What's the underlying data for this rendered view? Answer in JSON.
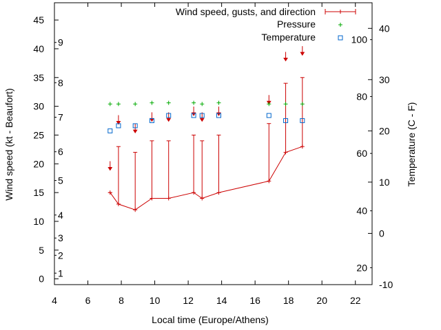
{
  "chart_data": {
    "type": "line",
    "xlabel": "Local time (Europe/Athens)",
    "ylabel": "Wind speed (kt - Beaufort)",
    "y2label": "Temperature (C - F)",
    "xlim": [
      4,
      23
    ],
    "ylim": [
      -1,
      48
    ],
    "y2lim": [
      -10,
      45
    ],
    "x_ticks": [
      4,
      6,
      8,
      10,
      12,
      14,
      16,
      18,
      20,
      22
    ],
    "y_ticks": [
      0,
      5,
      10,
      15,
      20,
      25,
      30,
      35,
      40,
      45
    ],
    "beaufort_ticks": [
      {
        "label": "1",
        "y": 1
      },
      {
        "label": "2",
        "y": 4.1
      },
      {
        "label": "3",
        "y": 7.1
      },
      {
        "label": "4",
        "y": 11.1
      },
      {
        "label": "5",
        "y": 17.1
      },
      {
        "label": "6",
        "y": 22.1
      },
      {
        "label": "7",
        "y": 28.1
      },
      {
        "label": "8",
        "y": 34.1
      },
      {
        "label": "9",
        "y": 41.1
      }
    ],
    "y2_ticks": [
      -10,
      0,
      10,
      20,
      30,
      40
    ],
    "fahrenheit_ticks": [
      {
        "label": "20",
        "y": -6.7
      },
      {
        "label": "40",
        "y": 4.4
      },
      {
        "label": "60",
        "y": 15.6
      },
      {
        "label": "80",
        "y": 26.7
      },
      {
        "label": "100",
        "y": 37.8
      }
    ],
    "legend": [
      {
        "label": "Wind speed, gusts, and direction"
      },
      {
        "label": "Pressure"
      },
      {
        "label": "Temperature"
      }
    ],
    "colors": {
      "wind": "#cc0000",
      "pressure": "#00aa00",
      "temperature": "#0066cc"
    },
    "series": [
      {
        "name": "Wind speed, gusts, and direction",
        "x": [
          7.33,
          7.83,
          8.83,
          9.83,
          10.83,
          12.33,
          12.83,
          13.83,
          16.83,
          17.83,
          18.83
        ],
        "speed": [
          15,
          13,
          12,
          14,
          14,
          15,
          14,
          15,
          17,
          22,
          23
        ],
        "gust": [
          15,
          23,
          22,
          24,
          24,
          25,
          24,
          25,
          27,
          34,
          35
        ],
        "direction_y": [
          19.5,
          27.5,
          26,
          28,
          28,
          29,
          28,
          29,
          31,
          38.5,
          39.5
        ]
      },
      {
        "name": "Pressure",
        "x": [
          7.33,
          7.83,
          8.83,
          9.83,
          10.83,
          12.33,
          12.83,
          13.83,
          16.83,
          17.83,
          18.83
        ],
        "values": [
          30.4,
          30.4,
          30.4,
          30.6,
          30.6,
          30.6,
          30.4,
          30.6,
          30.4,
          30.4,
          30.4
        ]
      },
      {
        "name": "Temperature",
        "x": [
          7.33,
          7.83,
          8.83,
          9.83,
          10.83,
          12.33,
          12.83,
          13.83,
          16.83,
          17.83,
          18.83
        ],
        "values": [
          20,
          21,
          21,
          22,
          23,
          23,
          23,
          23,
          23,
          22,
          22
        ]
      }
    ]
  }
}
